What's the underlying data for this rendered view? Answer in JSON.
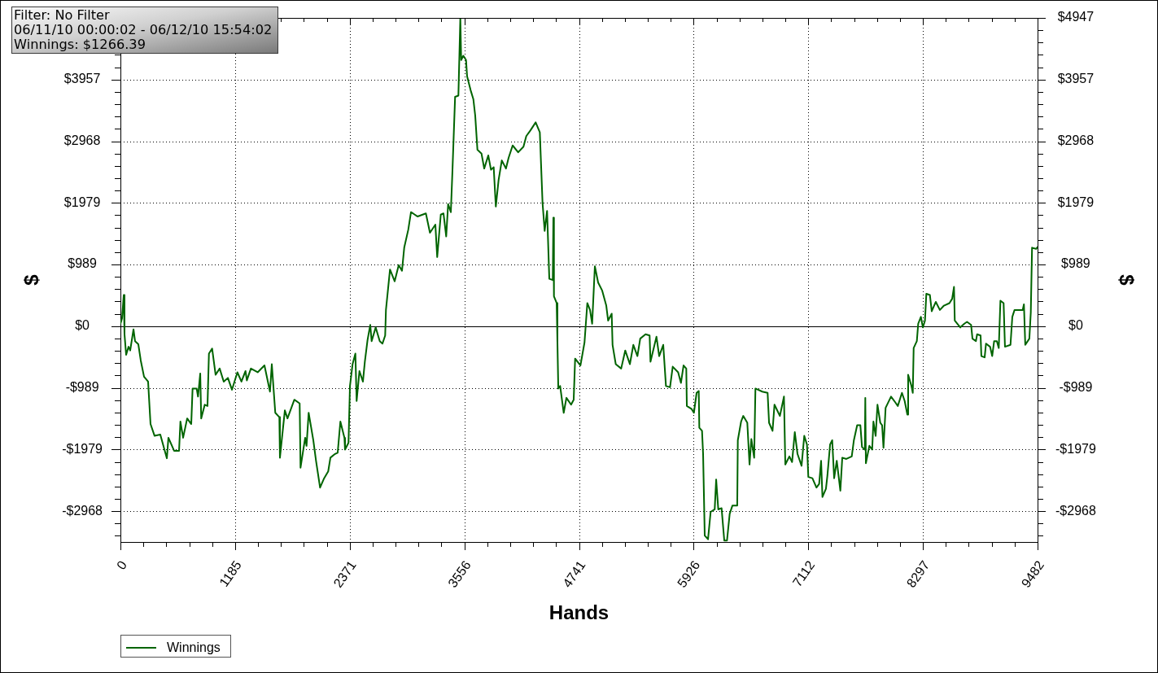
{
  "chart_data": {
    "type": "line",
    "annotations": [
      "Filter: No Filter",
      "06/11/10 00:00:02 - 06/12/10 15:54:02",
      "Winnings: $1266.39"
    ],
    "xlabel": "Hands",
    "ylabel": "$",
    "y2label": "$",
    "xlim": [
      0,
      9482
    ],
    "ylim": [
      -3463,
      4947
    ],
    "y2lim": [
      -3463,
      4947
    ],
    "xticks": [
      0,
      {
        "value": 237,
        "label": null
      },
      {
        "value": 474,
        "label": null
      },
      {
        "value": 711,
        "label": null
      },
      {
        "value": 948,
        "label": null
      },
      1185,
      {
        "value": 1422,
        "label": null
      },
      {
        "value": 1659,
        "label": null
      },
      {
        "value": 1896,
        "label": null
      },
      {
        "value": 2133,
        "label": null
      },
      2371,
      {
        "value": 2608,
        "label": null
      },
      {
        "value": 2845,
        "label": null
      },
      {
        "value": 3082,
        "label": null
      },
      {
        "value": 3319,
        "label": null
      },
      3556,
      {
        "value": 3793,
        "label": null
      },
      {
        "value": 4030,
        "label": null
      },
      {
        "value": 4267,
        "label": null
      },
      {
        "value": 4504,
        "label": null
      },
      4741,
      {
        "value": 4978,
        "label": null
      },
      {
        "value": 5215,
        "label": null
      },
      {
        "value": 5452,
        "label": null
      },
      {
        "value": 5689,
        "label": null
      },
      5926,
      {
        "value": 6163,
        "label": null
      },
      {
        "value": 6400,
        "label": null
      },
      {
        "value": 6637,
        "label": null
      },
      {
        "value": 6874,
        "label": null
      },
      7112,
      {
        "value": 7349,
        "label": null
      },
      {
        "value": 7586,
        "label": null
      },
      {
        "value": 7823,
        "label": null
      },
      {
        "value": 8060,
        "label": null
      },
      8297,
      {
        "value": 8534,
        "label": null
      },
      {
        "value": 8771,
        "label": null
      },
      {
        "value": 9008,
        "label": null
      },
      {
        "value": 9245,
        "label": null
      },
      9482
    ],
    "yticks": [
      {
        "value": -3364,
        "label": null
      },
      {
        "value": -3166,
        "label": null
      },
      {
        "value": -2968,
        "label": "-$2968"
      },
      {
        "value": -2770,
        "label": null
      },
      {
        "value": -2572,
        "label": null
      },
      {
        "value": -2375,
        "label": null
      },
      {
        "value": -2177,
        "label": null
      },
      {
        "value": -1979,
        "label": "-$1979"
      },
      {
        "value": -1781,
        "label": null
      },
      {
        "value": -1583,
        "label": null
      },
      {
        "value": -1385,
        "label": null
      },
      {
        "value": -1187,
        "label": null
      },
      {
        "value": -989,
        "label": "-$989"
      },
      {
        "value": -792,
        "label": null
      },
      {
        "value": -594,
        "label": null
      },
      {
        "value": -396,
        "label": null
      },
      {
        "value": -198,
        "label": null
      },
      {
        "value": 0,
        "label": "$0"
      },
      {
        "value": 198,
        "label": null
      },
      {
        "value": 396,
        "label": null
      },
      {
        "value": 594,
        "label": null
      },
      {
        "value": 792,
        "label": null
      },
      {
        "value": 989,
        "label": "$989"
      },
      {
        "value": 1187,
        "label": null
      },
      {
        "value": 1385,
        "label": null
      },
      {
        "value": 1583,
        "label": null
      },
      {
        "value": 1781,
        "label": null
      },
      {
        "value": 1979,
        "label": "$1979"
      },
      {
        "value": 2177,
        "label": null
      },
      {
        "value": 2375,
        "label": null
      },
      {
        "value": 2572,
        "label": null
      },
      {
        "value": 2770,
        "label": null
      },
      {
        "value": 2968,
        "label": "$2968"
      },
      {
        "value": 3166,
        "label": null
      },
      {
        "value": 3364,
        "label": null
      },
      {
        "value": 3562,
        "label": null
      },
      {
        "value": 3760,
        "label": null
      },
      {
        "value": 3957,
        "label": "$3957"
      },
      {
        "value": 4155,
        "label": null
      },
      {
        "value": 4353,
        "label": null
      },
      {
        "value": 4551,
        "label": null
      },
      {
        "value": 4749,
        "label": null
      },
      {
        "value": 4947,
        "label": null
      }
    ],
    "y2ticks": [
      {
        "value": -3364,
        "label": null
      },
      {
        "value": -3166,
        "label": null
      },
      {
        "value": -2968,
        "label": "-$2968"
      },
      {
        "value": -2770,
        "label": null
      },
      {
        "value": -2572,
        "label": null
      },
      {
        "value": -2375,
        "label": null
      },
      {
        "value": -2177,
        "label": null
      },
      {
        "value": -1979,
        "label": "-$1979"
      },
      {
        "value": -1781,
        "label": null
      },
      {
        "value": -1583,
        "label": null
      },
      {
        "value": -1385,
        "label": null
      },
      {
        "value": -1187,
        "label": null
      },
      {
        "value": -989,
        "label": "-$989"
      },
      {
        "value": -792,
        "label": null
      },
      {
        "value": -594,
        "label": null
      },
      {
        "value": -396,
        "label": null
      },
      {
        "value": -198,
        "label": null
      },
      {
        "value": 0,
        "label": "$0"
      },
      {
        "value": 198,
        "label": null
      },
      {
        "value": 396,
        "label": null
      },
      {
        "value": 594,
        "label": null
      },
      {
        "value": 792,
        "label": null
      },
      {
        "value": 989,
        "label": "$989"
      },
      {
        "value": 1187,
        "label": null
      },
      {
        "value": 1385,
        "label": null
      },
      {
        "value": 1583,
        "label": null
      },
      {
        "value": 1781,
        "label": null
      },
      {
        "value": 1979,
        "label": "$1979"
      },
      {
        "value": 2177,
        "label": null
      },
      {
        "value": 2375,
        "label": null
      },
      {
        "value": 2572,
        "label": null
      },
      {
        "value": 2770,
        "label": null
      },
      {
        "value": 2968,
        "label": "$2968"
      },
      {
        "value": 3166,
        "label": null
      },
      {
        "value": 3364,
        "label": null
      },
      {
        "value": 3562,
        "label": null
      },
      {
        "value": 3760,
        "label": null
      },
      {
        "value": 3957,
        "label": "$3957"
      },
      {
        "value": 4155,
        "label": null
      },
      {
        "value": 4353,
        "label": null
      },
      {
        "value": 4551,
        "label": null
      },
      {
        "value": 4749,
        "label": null
      },
      {
        "value": 4947,
        "label": "$4947"
      }
    ],
    "grid": true,
    "legend": "bottom left",
    "ref_lines": [
      {
        "axis": "y",
        "value": 0,
        "color": "#000000"
      }
    ],
    "x": [
      0,
      17,
      34,
      42,
      59,
      84,
      101,
      135,
      151,
      185,
      210,
      244,
      286,
      311,
      353,
      412,
      480,
      496,
      555,
      606,
      620,
      648,
      690,
      732,
      746,
      788,
      802,
      825,
      835,
      872,
      900,
      915,
      948,
      984,
      1026,
      1068,
      1111,
      1153,
      1209,
      1251,
      1293,
      1307,
      1349,
      1419,
      1489,
      1546,
      1565,
      1601,
      1643,
      1649,
      1700,
      1727,
      1798,
      1853,
      1862,
      1910,
      1924,
      1946,
      1994,
      2022,
      2064,
      2106,
      2148,
      2171,
      2219,
      2246,
      2274,
      2316,
      2322,
      2358,
      2373,
      2400,
      2429,
      2442,
      2471,
      2507,
      2527,
      2555,
      2583,
      2597,
      2639,
      2681,
      2709,
      2737,
      2745,
      2787,
      2835,
      2877,
      2911,
      2934,
      2976,
      3004,
      3073,
      3158,
      3200,
      3256,
      3275,
      3312,
      3340,
      3368,
      3388,
      3416,
      3433,
      3460,
      3494,
      3514,
      3523,
      3545,
      3573,
      3584,
      3620,
      3649,
      3668,
      3691,
      3733,
      3761,
      3803,
      3831,
      3859,
      3881,
      3910,
      3943,
      3986,
      4013,
      4055,
      4112,
      4167,
      4196,
      4238,
      4293,
      4336,
      4364,
      4386,
      4411,
      4434,
      4470,
      4476,
      4482,
      4510,
      4518,
      4527,
      4546,
      4583,
      4611,
      4659,
      4686,
      4701,
      4756,
      4798,
      4827,
      4855,
      4877,
      4905,
      4939,
      4981,
      5023,
      5042,
      5079,
      5088,
      5121,
      5177,
      5219,
      5267,
      5303,
      5345,
      5374,
      5429,
      5471,
      5480,
      5542,
      5570,
      5612,
      5640,
      5682,
      5710,
      5766,
      5795,
      5822,
      5850,
      5856,
      5906,
      5929,
      5957,
      5979,
      5985,
      6013,
      6024,
      6041,
      6075,
      6102,
      6144,
      6159,
      6181,
      6215,
      6243,
      6271,
      6299,
      6327,
      6377,
      6383,
      6417,
      6439,
      6481,
      6504,
      6523,
      6552,
      6565,
      6636,
      6691,
      6706,
      6742,
      6762,
      6818,
      6860,
      6874,
      6916,
      6944,
      6972,
      7000,
      7042,
      7070,
      7098,
      7112,
      7154,
      7196,
      7224,
      7244,
      7258,
      7294,
      7309,
      7337,
      7359,
      7379,
      7406,
      7443,
      7463,
      7505,
      7561,
      7583,
      7617,
      7650,
      7667,
      7696,
      7701,
      7707,
      7743,
      7772,
      7785,
      7808,
      7827,
      7856,
      7875,
      7889,
      7911,
      7967,
      8010,
      8037,
      8080,
      8108,
      8136,
      8144,
      8178,
      8192,
      8201,
      8234,
      8248,
      8276,
      8296,
      8318,
      8332,
      8369,
      8388,
      8430,
      8472,
      8514,
      8571,
      8599,
      8618,
      8626,
      8683,
      8725,
      8753,
      8795,
      8809,
      8845,
      8857,
      8893,
      8901,
      8935,
      8949,
      8991,
      9013,
      9033,
      9061,
      9081,
      9098,
      9131,
      9145,
      9202,
      9221,
      9244,
      9328,
      9341,
      9355,
      9397,
      9412,
      9425,
      9467,
      9482
    ],
    "series": [
      {
        "name": "Winnings",
        "color": "#006400",
        "values": [
          40,
          130,
          500,
          -130,
          -460,
          -330,
          -390,
          -50,
          -240,
          -290,
          -550,
          -810,
          -890,
          -1570,
          -1760,
          -1740,
          -2120,
          -1790,
          -2000,
          -2000,
          -1530,
          -1790,
          -1480,
          -1570,
          -1000,
          -1000,
          -1130,
          -760,
          -1480,
          -1260,
          -1280,
          -440,
          -360,
          -780,
          -680,
          -890,
          -830,
          -1020,
          -740,
          -890,
          -720,
          -870,
          -680,
          -740,
          -630,
          -1050,
          -610,
          -1390,
          -1460,
          -2110,
          -1350,
          -1480,
          -1180,
          -1240,
          -2270,
          -1790,
          -1920,
          -1390,
          -1830,
          -2160,
          -2590,
          -2440,
          -2330,
          -2110,
          -2050,
          -2030,
          -1530,
          -1790,
          -1980,
          -1870,
          -960,
          -610,
          -440,
          -1200,
          -720,
          -890,
          -570,
          -220,
          20,
          -240,
          -20,
          -240,
          -280,
          -150,
          260,
          910,
          720,
          980,
          890,
          1260,
          1550,
          1830,
          1760,
          1810,
          1500,
          1630,
          1110,
          1790,
          1810,
          1440,
          1960,
          1830,
          2510,
          3680,
          3700,
          4940,
          4270,
          4340,
          4270,
          4010,
          3790,
          3640,
          3380,
          2830,
          2770,
          2530,
          2740,
          2510,
          2550,
          1920,
          2350,
          2660,
          2530,
          2700,
          2900,
          2790,
          2880,
          3050,
          3140,
          3270,
          3110,
          1980,
          1530,
          1850,
          760,
          740,
          1740,
          480,
          370,
          -260,
          -1000,
          -960,
          -1390,
          -1150,
          -1260,
          -1180,
          -520,
          -630,
          -260,
          370,
          260,
          40,
          960,
          700,
          570,
          330,
          90,
          200,
          -300,
          -610,
          -680,
          -390,
          -610,
          -300,
          -480,
          -200,
          -130,
          -150,
          -570,
          -170,
          -480,
          -300,
          -960,
          -980,
          -650,
          -740,
          -910,
          -630,
          -680,
          -1280,
          -1330,
          -1390,
          -1070,
          -1040,
          -1630,
          -1680,
          -2050,
          -3360,
          -3420,
          -2980,
          -2940,
          -2460,
          -2940,
          -2920,
          -3440,
          -3440,
          -3010,
          -2880,
          -2880,
          -1830,
          -1530,
          -1440,
          -1550,
          -2220,
          -1810,
          -2110,
          -1000,
          -1050,
          -1070,
          -1550,
          -1680,
          -1260,
          -1440,
          -1130,
          -2220,
          -2090,
          -2180,
          -1700,
          -2050,
          -2240,
          -1760,
          -1900,
          -2420,
          -2440,
          -2590,
          -2530,
          -2160,
          -2740,
          -2610,
          -2400,
          -1900,
          -1830,
          -2440,
          -2160,
          -2640,
          -2110,
          -2130,
          -2090,
          -1830,
          -1590,
          -1590,
          -1940,
          -1980,
          -1150,
          -2200,
          -1920,
          -1980,
          -1530,
          -1760,
          -1260,
          -1550,
          -1590,
          -1950,
          -1310,
          -1130,
          -1220,
          -1280,
          -1070,
          -1200,
          -1420,
          -780,
          -960,
          -1070,
          -350,
          -240,
          40,
          150,
          -20,
          90,
          520,
          500,
          240,
          390,
          260,
          330,
          370,
          440,
          630,
          90,
          -20,
          40,
          70,
          20,
          -200,
          -240,
          -130,
          -150,
          -480,
          -500,
          -280,
          -330,
          -480,
          -240,
          -240,
          -350,
          410,
          370,
          -330,
          -300,
          150,
          260,
          260,
          350,
          -300,
          -200,
          220,
          1260,
          1240,
          1270
        ]
      }
    ]
  }
}
